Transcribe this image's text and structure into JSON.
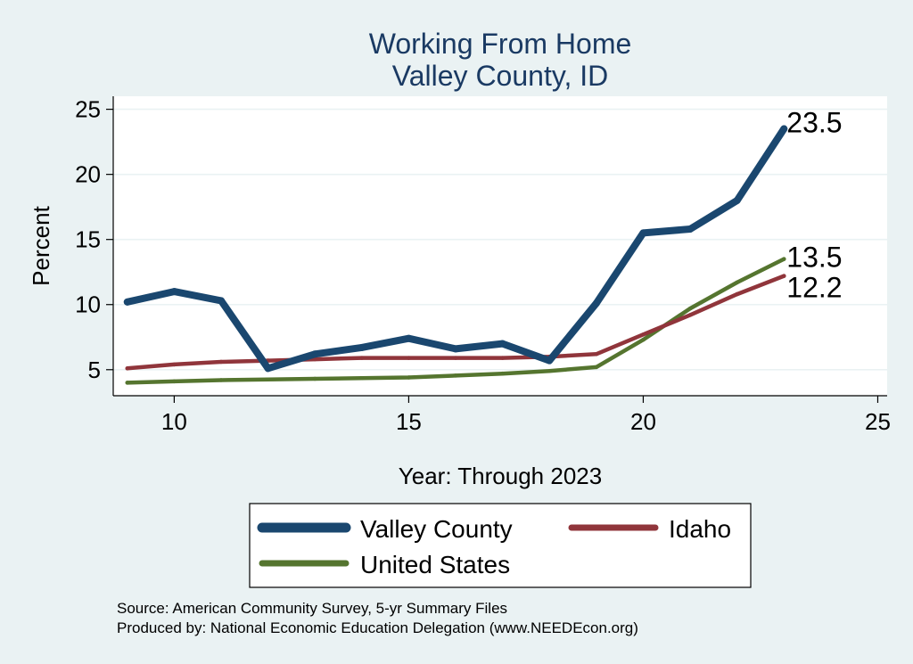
{
  "chart_data": {
    "type": "line",
    "title_lines": [
      "Working From Home",
      "Valley County, ID"
    ],
    "xlabel": "Year: Through 2023",
    "ylabel": "Percent",
    "xlim": [
      8.7,
      25.2
    ],
    "ylim": [
      3.0,
      26.0
    ],
    "x_ticks": [
      10,
      15,
      20,
      25
    ],
    "y_ticks": [
      5,
      10,
      15,
      20,
      25
    ],
    "grid": "horizontal",
    "legend_position": "bottom",
    "series": [
      {
        "name": "Valley County",
        "color": "#1a476f",
        "end_label": "23.5",
        "points": [
          [
            9,
            10.2
          ],
          [
            10,
            11.0
          ],
          [
            11,
            10.3
          ],
          [
            12,
            5.1
          ],
          [
            13,
            6.2
          ],
          [
            14,
            6.7
          ],
          [
            15,
            7.4
          ],
          [
            16,
            6.6
          ],
          [
            17,
            7.0
          ],
          [
            18,
            5.7
          ],
          [
            19,
            10.1
          ],
          [
            20,
            15.5
          ],
          [
            21,
            15.8
          ],
          [
            22,
            18.0
          ],
          [
            23,
            23.5
          ]
        ]
      },
      {
        "name": "Idaho",
        "color": "#90353b",
        "end_label": "12.2",
        "points": [
          [
            9,
            5.1
          ],
          [
            10,
            5.4
          ],
          [
            11,
            5.6
          ],
          [
            12,
            5.7
          ],
          [
            13,
            5.8
          ],
          [
            14,
            5.9
          ],
          [
            15,
            5.9
          ],
          [
            16,
            5.9
          ],
          [
            17,
            5.9
          ],
          [
            18,
            6.0
          ],
          [
            19,
            6.2
          ],
          [
            20,
            7.7
          ],
          [
            21,
            9.2
          ],
          [
            22,
            10.8
          ],
          [
            23,
            12.2
          ]
        ]
      },
      {
        "name": "United States",
        "color": "#55752f",
        "end_label": "13.5",
        "points": [
          [
            9,
            4.0
          ],
          [
            10,
            4.1
          ],
          [
            11,
            4.2
          ],
          [
            12,
            4.25
          ],
          [
            13,
            4.3
          ],
          [
            14,
            4.35
          ],
          [
            15,
            4.4
          ],
          [
            16,
            4.55
          ],
          [
            17,
            4.7
          ],
          [
            18,
            4.9
          ],
          [
            19,
            5.2
          ],
          [
            20,
            7.3
          ],
          [
            21,
            9.7
          ],
          [
            22,
            11.7
          ],
          [
            23,
            13.5
          ]
        ]
      }
    ]
  },
  "footer": {
    "source": "Source: American Community Survey, 5-yr Summary Files",
    "produced_by": "Produced by: National Economic Education Delegation (www.NEEDEcon.org)"
  }
}
